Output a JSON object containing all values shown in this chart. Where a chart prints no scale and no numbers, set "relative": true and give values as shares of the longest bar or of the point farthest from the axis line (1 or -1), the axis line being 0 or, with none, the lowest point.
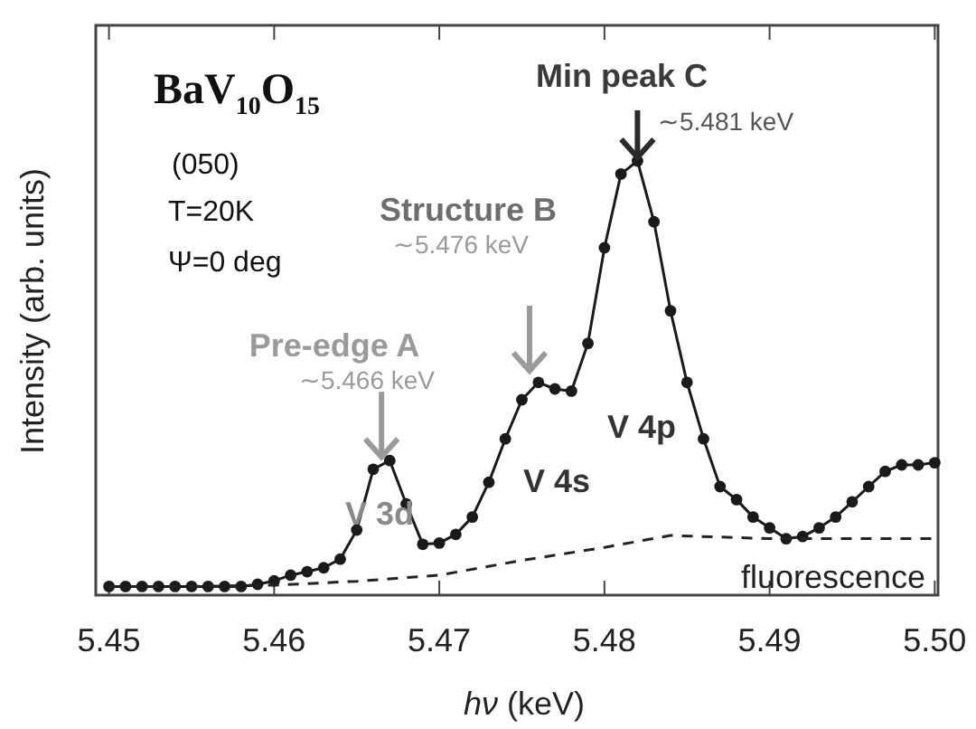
{
  "chart_data": {
    "type": "line",
    "relative": true,
    "xlabel": "hν (keV)",
    "ylabel": "Intensity (arb. units)",
    "xlim": [
      5.4492,
      5.5002
    ],
    "xticks": [
      5.45,
      5.46,
      5.47,
      5.48,
      5.49,
      {
        "value": 5.5,
        "label": "5.50"
      }
    ],
    "grid": false,
    "series": [
      {
        "color": "#1a1a1a",
        "marker": "circle",
        "line_style": "solid",
        "x": [
          5.45,
          5.451,
          5.452,
          5.453,
          5.454,
          5.455,
          5.456,
          5.457,
          5.458,
          5.459,
          5.46,
          5.461,
          5.462,
          5.463,
          5.464,
          5.465,
          5.466,
          5.467,
          5.468,
          5.469,
          5.47,
          5.471,
          5.472,
          5.473,
          5.474,
          5.475,
          5.476,
          5.477,
          5.478,
          5.479,
          5.48,
          5.481,
          5.482,
          5.483,
          5.484,
          5.485,
          5.486,
          5.487,
          5.488,
          5.489,
          5.49,
          5.491,
          5.492,
          5.493,
          5.494,
          5.495,
          5.496,
          5.497,
          5.498,
          5.499,
          5.5
        ],
        "values": [
          0.02,
          0.02,
          0.02,
          0.02,
          0.02,
          0.02,
          0.02,
          0.02,
          0.02,
          0.025,
          0.033,
          0.046,
          0.054,
          0.063,
          0.083,
          0.15,
          0.29,
          0.31,
          0.21,
          0.117,
          0.12,
          0.14,
          0.18,
          0.26,
          0.36,
          0.45,
          0.49,
          0.475,
          0.47,
          0.58,
          0.8,
          0.97,
          1.0,
          0.86,
          0.655,
          0.49,
          0.36,
          0.25,
          0.22,
          0.18,
          0.155,
          0.13,
          0.135,
          0.155,
          0.18,
          0.215,
          0.25,
          0.285,
          0.3,
          0.3,
          0.305
        ]
      },
      {
        "name": "fluorescence",
        "color": "#222222",
        "marker": "none",
        "line_style": "dashed",
        "x": [
          5.45,
          5.455,
          5.46,
          5.465,
          5.47,
          5.475,
          5.48,
          5.484,
          5.49,
          5.495,
          5.5
        ],
        "values": [
          0.02,
          0.02,
          0.023,
          0.032,
          0.046,
          0.08,
          0.11,
          0.1375,
          0.13,
          0.13,
          0.13
        ]
      }
    ],
    "annotations": [
      "BaV$_{10}$O$_{15}$",
      "(050)",
      "T=20K",
      "Ψ=0 deg",
      {
        "text": "Pre-edge A",
        "x": 5.4665,
        "y": 0.31
      },
      "∼5.466 keV",
      "Structure B",
      "∼5.476 keV",
      {
        "text": "Min peak C",
        "x": 5.482,
        "y": 1.0
      },
      "∼5.481 keV",
      "V 3d",
      "V 4s",
      "V 4p"
    ]
  }
}
